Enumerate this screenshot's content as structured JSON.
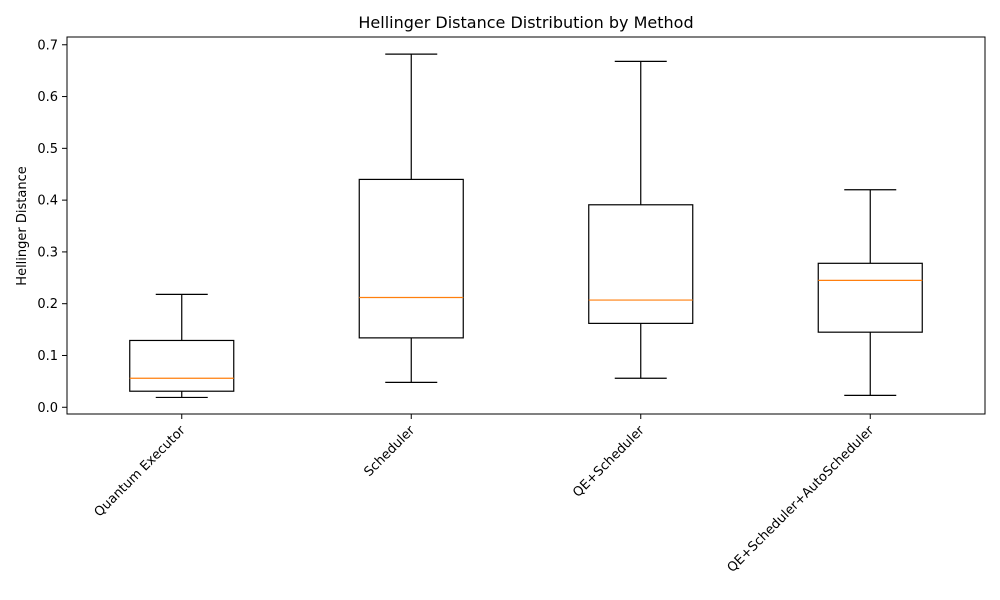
{
  "chart_data": {
    "type": "boxplot",
    "title": "Hellinger Distance Distribution by Method",
    "xlabel": "",
    "ylabel": "Hellinger Distance",
    "ylim": [
      -0.013,
      0.715
    ],
    "yticks": [
      "0.0",
      "0.1",
      "0.2",
      "0.3",
      "0.4",
      "0.5",
      "0.6",
      "0.7"
    ],
    "grid": false,
    "median_color": "#ff7f0e",
    "box_color": "#000000",
    "categories": [
      "Quantum Executor",
      "Scheduler",
      "QE+Scheduler",
      "QE+Scheduler+AutoScheduler"
    ],
    "boxes": [
      {
        "whisker_low": 0.019,
        "q1": 0.031,
        "median": 0.056,
        "q3": 0.129,
        "whisker_high": 0.218
      },
      {
        "whisker_low": 0.048,
        "q1": 0.134,
        "median": 0.212,
        "q3": 0.44,
        "whisker_high": 0.682
      },
      {
        "whisker_low": 0.056,
        "q1": 0.162,
        "median": 0.207,
        "q3": 0.391,
        "whisker_high": 0.668
      },
      {
        "whisker_low": 0.023,
        "q1": 0.145,
        "median": 0.245,
        "q3": 0.278,
        "whisker_high": 0.42
      }
    ]
  }
}
